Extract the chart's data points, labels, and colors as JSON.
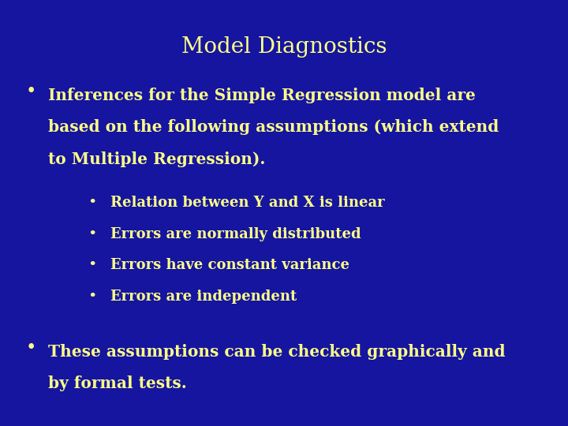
{
  "title": "Model Diagnostics",
  "background_color": "#1515a0",
  "title_color": "#ffff88",
  "text_color": "#ffff88",
  "title_fontsize": 20,
  "body_fontsize": 14.5,
  "sub_fontsize": 13,
  "bullet1_lines": [
    "Inferences for the Simple Regression model are",
    "based on the following assumptions (which extend",
    "to Multiple Regression)."
  ],
  "sub_bullets": [
    "Relation between Y and X is linear",
    "Errors are normally distributed",
    "Errors have constant variance",
    "Errors are independent"
  ],
  "bullet2_lines": [
    "These assumptions can be checked graphically and",
    "by formal tests."
  ]
}
